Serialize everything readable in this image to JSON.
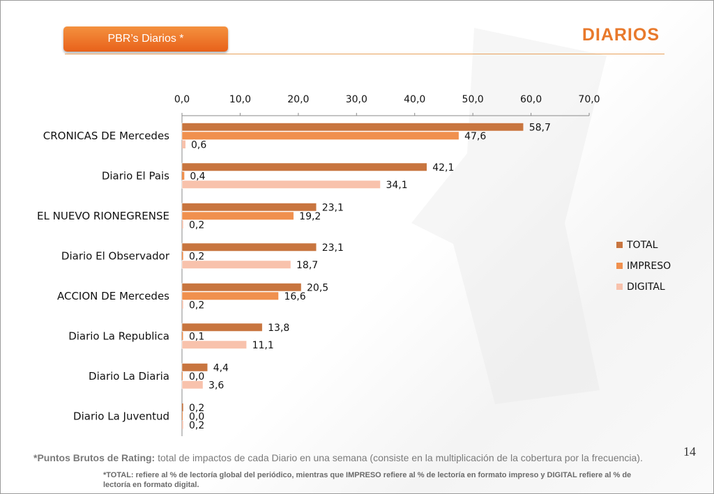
{
  "header": {
    "badge_label": "PBR’s Diarios  *",
    "title": "DIARIOS"
  },
  "page_number": "14",
  "footnotes": {
    "pbr_term": "*Puntos Brutos de Rating:",
    "pbr_text": " total de impactos de cada Diario en una semana (consiste en la multiplicación de la cobertura por la frecuencia).",
    "total_note": "*TOTAL: refiere al % de lectoría global del periódico, mientras que IMPRESO refiere al % de lectoría en formato impreso y DIGITAL refiere al % de lectoría en formato digital."
  },
  "colors": {
    "total": "#c8753f",
    "impreso": "#f0904e",
    "digital": "#f8c2ac",
    "accent": "#e8792b"
  },
  "chart_data": {
    "type": "bar",
    "orientation": "horizontal",
    "categories": [
      "CRONICAS DE Mercedes",
      "Diario El Pais",
      "EL NUEVO RIONEGRENSE",
      "Diario El Observador",
      "ACCION DE Mercedes",
      "Diario La Republica",
      "Diario La Diaria",
      "Diario La Juventud"
    ],
    "series": [
      {
        "name": "TOTAL",
        "values": [
          58.7,
          42.1,
          23.1,
          23.1,
          20.5,
          13.8,
          4.4,
          0.2
        ],
        "labels": [
          "58,7",
          "42,1",
          "23,1",
          "23,1",
          "20,5",
          "13,8",
          "4,4",
          "0,2"
        ]
      },
      {
        "name": "IMPRESO",
        "values": [
          47.6,
          0.4,
          19.2,
          0.2,
          16.6,
          0.1,
          0.0,
          0.0
        ],
        "labels": [
          "47,6",
          "0,4",
          "19,2",
          "0,2",
          "16,6",
          "0,1",
          "0,0",
          "0,0"
        ]
      },
      {
        "name": "DIGITAL",
        "values": [
          0.6,
          34.1,
          0.2,
          18.7,
          0.2,
          11.1,
          3.6,
          0.2
        ],
        "labels": [
          "0,6",
          "34,1",
          "0,2",
          "18,7",
          "0,2",
          "11,1",
          "3,6",
          "0,2"
        ]
      }
    ],
    "xlim": [
      0,
      70
    ],
    "ticks": [
      "0,0",
      "10,0",
      "20,0",
      "30,0",
      "40,0",
      "50,0",
      "60,0",
      "70,0"
    ],
    "xaxis_position": "top",
    "grid": false,
    "legend_position": "right"
  }
}
